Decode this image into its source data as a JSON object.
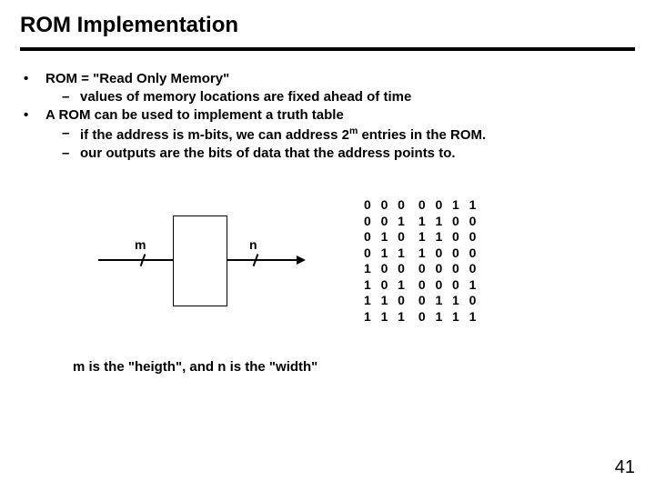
{
  "title": "ROM Implementation",
  "bullets": [
    {
      "level": 1,
      "text": "ROM = \"Read Only Memory\""
    },
    {
      "level": 2,
      "text": "values of memory locations are fixed ahead of time"
    },
    {
      "level": 1,
      "text": "A ROM can be used to implement a truth table"
    },
    {
      "level": 2,
      "text_pre": "if the address is m-bits, we can address 2",
      "sup": "m",
      "text_post": " entries in the ROM."
    },
    {
      "level": 2,
      "text": "our outputs are the bits of data that the address points to."
    }
  ],
  "diagram": {
    "left_label": "m",
    "right_label": "n"
  },
  "truth_table": {
    "inputs": [
      [
        "0",
        "0",
        "0"
      ],
      [
        "0",
        "0",
        "1"
      ],
      [
        "0",
        "1",
        "0"
      ],
      [
        "0",
        "1",
        "1"
      ],
      [
        "1",
        "0",
        "0"
      ],
      [
        "1",
        "0",
        "1"
      ],
      [
        "1",
        "1",
        "0"
      ],
      [
        "1",
        "1",
        "1"
      ]
    ],
    "outputs": [
      [
        "0",
        "0",
        "1",
        "1"
      ],
      [
        "1",
        "1",
        "0",
        "0"
      ],
      [
        "1",
        "1",
        "0",
        "0"
      ],
      [
        "1",
        "0",
        "0",
        "0"
      ],
      [
        "0",
        "0",
        "0",
        "0"
      ],
      [
        "0",
        "0",
        "0",
        "1"
      ],
      [
        "0",
        "1",
        "1",
        "0"
      ],
      [
        "0",
        "1",
        "1",
        "1"
      ]
    ]
  },
  "footer": "m is the \"heigth\", and n is the \"width\"",
  "page_number": "41",
  "colors": {
    "text": "#000000",
    "background": "#ffffff",
    "rule": "#000000"
  },
  "fonts": {
    "title_pt": 24,
    "body_pt": 15,
    "table_pt": 14,
    "pagenum_pt": 20,
    "weight": "bold"
  }
}
